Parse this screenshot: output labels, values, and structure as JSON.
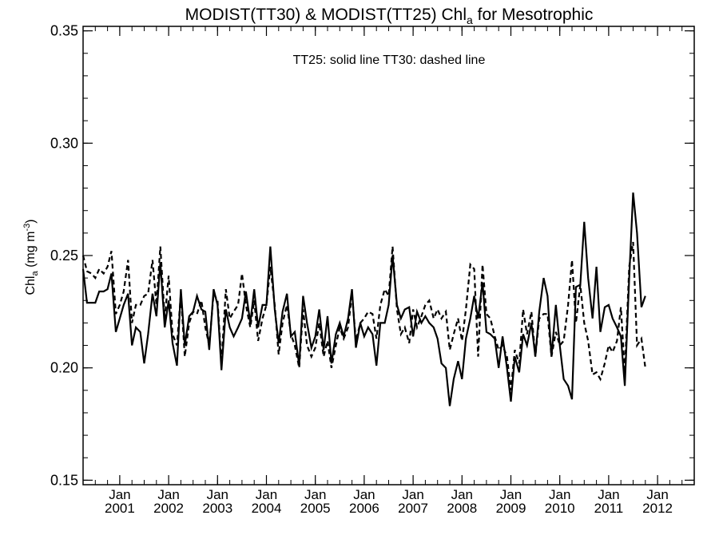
{
  "chart_data": {
    "type": "line",
    "title": {
      "prefix": "MODIST(TT30) & MODIST(TT25)  Chl",
      "subscript": "a",
      "suffix": " for Mesotrophic"
    },
    "ylabel": {
      "prefix": "Chl",
      "subscript": "a",
      "mid": " (mg m",
      "superscript": "-3",
      "suffix": ")"
    },
    "annotation": "TT25: solid line   TT30: dashed line",
    "xlim": [
      2000.25,
      2012.75
    ],
    "ylim": [
      0.148,
      0.352
    ],
    "grid": false,
    "y_ticks": [
      {
        "value": 0.15,
        "label": "0.15"
      },
      {
        "value": 0.2,
        "label": "0.20"
      },
      {
        "value": 0.25,
        "label": "0.25"
      },
      {
        "value": 0.3,
        "label": "0.30"
      },
      {
        "value": 0.35,
        "label": "0.35"
      }
    ],
    "x_ticks": [
      {
        "value": 2001,
        "month": "Jan",
        "year": "2001"
      },
      {
        "value": 2002,
        "month": "Jan",
        "year": "2002"
      },
      {
        "value": 2003,
        "month": "Jan",
        "year": "2003"
      },
      {
        "value": 2004,
        "month": "Jan",
        "year": "2004"
      },
      {
        "value": 2005,
        "month": "Jan",
        "year": "2005"
      },
      {
        "value": 2006,
        "month": "Jan",
        "year": "2006"
      },
      {
        "value": 2007,
        "month": "Jan",
        "year": "2007"
      },
      {
        "value": 2008,
        "month": "Jan",
        "year": "2008"
      },
      {
        "value": 2009,
        "month": "Jan",
        "year": "2009"
      },
      {
        "value": 2010,
        "month": "Jan",
        "year": "2010"
      },
      {
        "value": 2011,
        "month": "Jan",
        "year": "2011"
      },
      {
        "value": 2012,
        "month": "Jan",
        "year": "2012"
      }
    ],
    "series": [
      {
        "name": "TT25",
        "style": "solid",
        "points": [
          [
            2000.25,
            0.244
          ],
          [
            2000.33,
            0.229
          ],
          [
            2000.42,
            0.229
          ],
          [
            2000.5,
            0.229
          ],
          [
            2000.58,
            0.234
          ],
          [
            2000.67,
            0.234
          ],
          [
            2000.75,
            0.235
          ],
          [
            2000.83,
            0.242
          ],
          [
            2000.92,
            0.216
          ],
          [
            2001.0,
            0.222
          ],
          [
            2001.08,
            0.228
          ],
          [
            2001.17,
            0.233
          ],
          [
            2001.25,
            0.21
          ],
          [
            2001.33,
            0.218
          ],
          [
            2001.42,
            0.216
          ],
          [
            2001.5,
            0.202
          ],
          [
            2001.58,
            0.215
          ],
          [
            2001.67,
            0.233
          ],
          [
            2001.75,
            0.223
          ],
          [
            2001.83,
            0.247
          ],
          [
            2001.92,
            0.218
          ],
          [
            2002.0,
            0.23
          ],
          [
            2002.08,
            0.211
          ],
          [
            2002.17,
            0.201
          ],
          [
            2002.25,
            0.235
          ],
          [
            2002.33,
            0.21
          ],
          [
            2002.42,
            0.223
          ],
          [
            2002.5,
            0.225
          ],
          [
            2002.58,
            0.232
          ],
          [
            2002.67,
            0.226
          ],
          [
            2002.75,
            0.225
          ],
          [
            2002.83,
            0.208
          ],
          [
            2002.92,
            0.235
          ],
          [
            2003.0,
            0.228
          ],
          [
            2003.08,
            0.199
          ],
          [
            2003.17,
            0.226
          ],
          [
            2003.25,
            0.218
          ],
          [
            2003.33,
            0.214
          ],
          [
            2003.42,
            0.218
          ],
          [
            2003.5,
            0.222
          ],
          [
            2003.58,
            0.234
          ],
          [
            2003.67,
            0.22
          ],
          [
            2003.75,
            0.235
          ],
          [
            2003.83,
            0.218
          ],
          [
            2003.92,
            0.228
          ],
          [
            2004.0,
            0.228
          ],
          [
            2004.08,
            0.254
          ],
          [
            2004.17,
            0.226
          ],
          [
            2004.25,
            0.211
          ],
          [
            2004.33,
            0.225
          ],
          [
            2004.42,
            0.233
          ],
          [
            2004.5,
            0.214
          ],
          [
            2004.58,
            0.216
          ],
          [
            2004.67,
            0.201
          ],
          [
            2004.75,
            0.232
          ],
          [
            2004.83,
            0.22
          ],
          [
            2004.92,
            0.209
          ],
          [
            2005.0,
            0.214
          ],
          [
            2005.08,
            0.226
          ],
          [
            2005.17,
            0.208
          ],
          [
            2005.25,
            0.223
          ],
          [
            2005.33,
            0.202
          ],
          [
            2005.42,
            0.215
          ],
          [
            2005.5,
            0.22
          ],
          [
            2005.58,
            0.214
          ],
          [
            2005.67,
            0.222
          ],
          [
            2005.75,
            0.235
          ],
          [
            2005.83,
            0.209
          ],
          [
            2005.92,
            0.22
          ],
          [
            2006.0,
            0.214
          ],
          [
            2006.08,
            0.218
          ],
          [
            2006.17,
            0.215
          ],
          [
            2006.25,
            0.201
          ],
          [
            2006.33,
            0.22
          ],
          [
            2006.42,
            0.22
          ],
          [
            2006.5,
            0.228
          ],
          [
            2006.58,
            0.25
          ],
          [
            2006.67,
            0.228
          ],
          [
            2006.75,
            0.222
          ],
          [
            2006.83,
            0.226
          ],
          [
            2006.92,
            0.227
          ],
          [
            2007.0,
            0.214
          ],
          [
            2007.08,
            0.225
          ],
          [
            2007.17,
            0.22
          ],
          [
            2007.25,
            0.223
          ],
          [
            2007.33,
            0.22
          ],
          [
            2007.42,
            0.218
          ],
          [
            2007.5,
            0.213
          ],
          [
            2007.58,
            0.202
          ],
          [
            2007.67,
            0.2
          ],
          [
            2007.75,
            0.183
          ],
          [
            2007.83,
            0.195
          ],
          [
            2007.92,
            0.203
          ],
          [
            2008.0,
            0.195
          ],
          [
            2008.08,
            0.213
          ],
          [
            2008.17,
            0.222
          ],
          [
            2008.25,
            0.232
          ],
          [
            2008.33,
            0.222
          ],
          [
            2008.42,
            0.238
          ],
          [
            2008.5,
            0.216
          ],
          [
            2008.58,
            0.215
          ],
          [
            2008.67,
            0.213
          ],
          [
            2008.75,
            0.2
          ],
          [
            2008.83,
            0.214
          ],
          [
            2008.92,
            0.2
          ],
          [
            2009.0,
            0.185
          ],
          [
            2009.08,
            0.205
          ],
          [
            2009.17,
            0.198
          ],
          [
            2009.25,
            0.215
          ],
          [
            2009.33,
            0.21
          ],
          [
            2009.42,
            0.22
          ],
          [
            2009.5,
            0.205
          ],
          [
            2009.58,
            0.225
          ],
          [
            2009.67,
            0.24
          ],
          [
            2009.75,
            0.232
          ],
          [
            2009.83,
            0.205
          ],
          [
            2009.92,
            0.228
          ],
          [
            2010.0,
            0.21
          ],
          [
            2010.08,
            0.195
          ],
          [
            2010.17,
            0.192
          ],
          [
            2010.25,
            0.186
          ],
          [
            2010.33,
            0.236
          ],
          [
            2010.42,
            0.237
          ],
          [
            2010.5,
            0.265
          ],
          [
            2010.58,
            0.24
          ],
          [
            2010.67,
            0.222
          ],
          [
            2010.75,
            0.245
          ],
          [
            2010.83,
            0.216
          ],
          [
            2010.92,
            0.227
          ],
          [
            2011.0,
            0.228
          ],
          [
            2011.08,
            0.222
          ],
          [
            2011.17,
            0.218
          ],
          [
            2011.25,
            0.214
          ],
          [
            2011.33,
            0.192
          ],
          [
            2011.42,
            0.24
          ],
          [
            2011.5,
            0.278
          ],
          [
            2011.58,
            0.26
          ],
          [
            2011.67,
            0.227
          ],
          [
            2011.75,
            0.232
          ]
        ]
      },
      {
        "name": "TT30",
        "style": "dashed",
        "points": [
          [
            2000.25,
            0.25
          ],
          [
            2000.33,
            0.243
          ],
          [
            2000.42,
            0.242
          ],
          [
            2000.5,
            0.24
          ],
          [
            2000.58,
            0.244
          ],
          [
            2000.67,
            0.242
          ],
          [
            2000.75,
            0.245
          ],
          [
            2000.83,
            0.252
          ],
          [
            2000.92,
            0.224
          ],
          [
            2001.0,
            0.228
          ],
          [
            2001.08,
            0.234
          ],
          [
            2001.17,
            0.248
          ],
          [
            2001.25,
            0.22
          ],
          [
            2001.33,
            0.228
          ],
          [
            2001.42,
            0.228
          ],
          [
            2001.5,
            0.232
          ],
          [
            2001.58,
            0.233
          ],
          [
            2001.67,
            0.248
          ],
          [
            2001.75,
            0.228
          ],
          [
            2001.83,
            0.254
          ],
          [
            2001.92,
            0.222
          ],
          [
            2002.0,
            0.241
          ],
          [
            2002.08,
            0.215
          ],
          [
            2002.17,
            0.21
          ],
          [
            2002.25,
            0.233
          ],
          [
            2002.33,
            0.205
          ],
          [
            2002.42,
            0.22
          ],
          [
            2002.5,
            0.225
          ],
          [
            2002.58,
            0.224
          ],
          [
            2002.67,
            0.23
          ],
          [
            2002.75,
            0.218
          ],
          [
            2002.83,
            0.21
          ],
          [
            2002.92,
            0.233
          ],
          [
            2003.0,
            0.23
          ],
          [
            2003.08,
            0.202
          ],
          [
            2003.17,
            0.235
          ],
          [
            2003.25,
            0.222
          ],
          [
            2003.33,
            0.225
          ],
          [
            2003.42,
            0.228
          ],
          [
            2003.5,
            0.242
          ],
          [
            2003.58,
            0.228
          ],
          [
            2003.67,
            0.218
          ],
          [
            2003.75,
            0.23
          ],
          [
            2003.83,
            0.212
          ],
          [
            2003.92,
            0.222
          ],
          [
            2004.0,
            0.228
          ],
          [
            2004.08,
            0.245
          ],
          [
            2004.17,
            0.228
          ],
          [
            2004.25,
            0.206
          ],
          [
            2004.33,
            0.22
          ],
          [
            2004.42,
            0.228
          ],
          [
            2004.5,
            0.215
          ],
          [
            2004.58,
            0.21
          ],
          [
            2004.67,
            0.2
          ],
          [
            2004.75,
            0.226
          ],
          [
            2004.83,
            0.21
          ],
          [
            2004.92,
            0.205
          ],
          [
            2005.0,
            0.209
          ],
          [
            2005.08,
            0.22
          ],
          [
            2005.17,
            0.205
          ],
          [
            2005.25,
            0.212
          ],
          [
            2005.33,
            0.2
          ],
          [
            2005.42,
            0.21
          ],
          [
            2005.5,
            0.218
          ],
          [
            2005.58,
            0.213
          ],
          [
            2005.67,
            0.218
          ],
          [
            2005.75,
            0.233
          ],
          [
            2005.83,
            0.212
          ],
          [
            2005.92,
            0.22
          ],
          [
            2006.0,
            0.222
          ],
          [
            2006.08,
            0.225
          ],
          [
            2006.17,
            0.224
          ],
          [
            2006.25,
            0.213
          ],
          [
            2006.33,
            0.228
          ],
          [
            2006.42,
            0.235
          ],
          [
            2006.5,
            0.232
          ],
          [
            2006.58,
            0.254
          ],
          [
            2006.67,
            0.226
          ],
          [
            2006.75,
            0.215
          ],
          [
            2006.83,
            0.218
          ],
          [
            2006.92,
            0.211
          ],
          [
            2007.0,
            0.226
          ],
          [
            2007.08,
            0.218
          ],
          [
            2007.17,
            0.223
          ],
          [
            2007.25,
            0.228
          ],
          [
            2007.33,
            0.23
          ],
          [
            2007.42,
            0.222
          ],
          [
            2007.5,
            0.226
          ],
          [
            2007.58,
            0.222
          ],
          [
            2007.67,
            0.225
          ],
          [
            2007.75,
            0.208
          ],
          [
            2007.83,
            0.215
          ],
          [
            2007.92,
            0.222
          ],
          [
            2008.0,
            0.212
          ],
          [
            2008.08,
            0.226
          ],
          [
            2008.17,
            0.246
          ],
          [
            2008.25,
            0.244
          ],
          [
            2008.33,
            0.205
          ],
          [
            2008.42,
            0.246
          ],
          [
            2008.5,
            0.224
          ],
          [
            2008.58,
            0.222
          ],
          [
            2008.67,
            0.214
          ],
          [
            2008.75,
            0.208
          ],
          [
            2008.83,
            0.21
          ],
          [
            2008.92,
            0.205
          ],
          [
            2009.0,
            0.19
          ],
          [
            2009.08,
            0.208
          ],
          [
            2009.17,
            0.202
          ],
          [
            2009.25,
            0.226
          ],
          [
            2009.33,
            0.215
          ],
          [
            2009.42,
            0.225
          ],
          [
            2009.5,
            0.205
          ],
          [
            2009.58,
            0.222
          ],
          [
            2009.67,
            0.224
          ],
          [
            2009.75,
            0.224
          ],
          [
            2009.83,
            0.205
          ],
          [
            2009.92,
            0.216
          ],
          [
            2010.0,
            0.21
          ],
          [
            2010.08,
            0.212
          ],
          [
            2010.17,
            0.228
          ],
          [
            2010.25,
            0.248
          ],
          [
            2010.33,
            0.22
          ],
          [
            2010.42,
            0.237
          ],
          [
            2010.5,
            0.22
          ],
          [
            2010.58,
            0.212
          ],
          [
            2010.67,
            0.197
          ],
          [
            2010.75,
            0.198
          ],
          [
            2010.83,
            0.195
          ],
          [
            2010.92,
            0.202
          ],
          [
            2011.0,
            0.21
          ],
          [
            2011.08,
            0.207
          ],
          [
            2011.17,
            0.212
          ],
          [
            2011.25,
            0.227
          ],
          [
            2011.33,
            0.198
          ],
          [
            2011.42,
            0.245
          ],
          [
            2011.5,
            0.256
          ],
          [
            2011.58,
            0.21
          ],
          [
            2011.67,
            0.213
          ],
          [
            2011.75,
            0.2
          ]
        ]
      }
    ]
  }
}
